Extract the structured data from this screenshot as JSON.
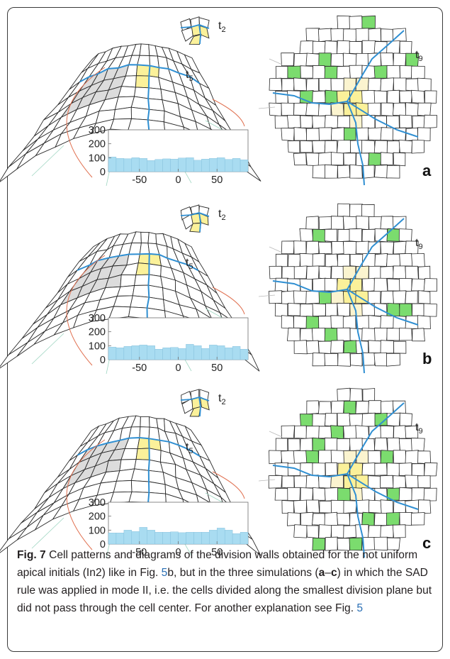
{
  "panels": [
    {
      "letter": "a",
      "labels": {
        "t2": "t",
        "t2_sub": "2",
        "t5": "t",
        "t5_sub": "5",
        "t9": "t",
        "t9_sub": "9"
      },
      "chart_data": {
        "type": "bar",
        "x_ticks": [
          "-50",
          "0",
          "50"
        ],
        "y_ticks": [
          "300",
          "200",
          "100",
          "0"
        ],
        "ylim": [
          0,
          300
        ],
        "xlim": [
          -90,
          90
        ],
        "bin_width": 10,
        "x": [
          -85,
          -75,
          -65,
          -55,
          -45,
          -35,
          -25,
          -15,
          -5,
          5,
          15,
          25,
          35,
          45,
          55,
          65,
          75,
          85
        ],
        "values": [
          105,
          95,
          93,
          100,
          95,
          80,
          88,
          92,
          90,
          98,
          100,
          82,
          90,
          95,
          100,
          88,
          95,
          85
        ],
        "color": "#a9dcf1"
      }
    },
    {
      "letter": "b",
      "labels": {
        "t2": "t",
        "t2_sub": "2",
        "t5": "t",
        "t5_sub": "5",
        "t9": "t",
        "t9_sub": "9"
      },
      "chart_data": {
        "type": "bar",
        "x_ticks": [
          "-50",
          "0",
          "50"
        ],
        "y_ticks": [
          "300",
          "200",
          "100",
          "0"
        ],
        "ylim": [
          0,
          300
        ],
        "xlim": [
          -90,
          90
        ],
        "bin_width": 10,
        "x": [
          -85,
          -75,
          -65,
          -55,
          -45,
          -35,
          -25,
          -15,
          -5,
          5,
          15,
          25,
          35,
          45,
          55,
          65,
          75,
          85
        ],
        "values": [
          90,
          85,
          95,
          100,
          105,
          100,
          75,
          85,
          88,
          80,
          110,
          100,
          80,
          105,
          100,
          85,
          95,
          75
        ],
        "color": "#a9dcf1"
      }
    },
    {
      "letter": "c",
      "labels": {
        "t2": "t",
        "t2_sub": "2",
        "t5": "t",
        "t5_sub": "5",
        "t9": "t",
        "t9_sub": "9"
      },
      "chart_data": {
        "type": "bar",
        "x_ticks": [
          "-50",
          "0",
          "50"
        ],
        "y_ticks": [
          "300",
          "200",
          "100",
          "0"
        ],
        "ylim": [
          0,
          300
        ],
        "xlim": [
          -90,
          90
        ],
        "bin_width": 10,
        "x": [
          -85,
          -75,
          -65,
          -55,
          -45,
          -35,
          -25,
          -15,
          -5,
          5,
          15,
          25,
          35,
          45,
          55,
          65,
          75,
          85
        ],
        "values": [
          80,
          80,
          100,
          90,
          120,
          100,
          85,
          85,
          88,
          82,
          85,
          85,
          85,
          100,
          115,
          100,
          75,
          85
        ],
        "color": "#a9dcf1"
      }
    }
  ],
  "caption": {
    "fig_label": "Fig. 7",
    "part1": " Cell patterns and diagrams of the division walls obtained for the not uniform apical initials (In2) like in Fig. ",
    "ref1": "5",
    "part2": "b, but in the three simulations (",
    "range_start": "a",
    "range_dash": "–",
    "range_end": "c",
    "part3": ") in which the SAD rule was applied in mode II, i.e. the cells divided along the smallest division plane but did not pass through the cell center. For another explanation see Fig. ",
    "ref2": "5"
  },
  "colors": {
    "wall": "#2a2a2a",
    "blue_wall": "#2f8fd2",
    "green_cell": "#7bdc6e",
    "yellow_cell": "#fbf19a",
    "pale_yellow": "#fbf4cf",
    "gray_region": "#dcdcdc",
    "orange_arc": "#e07050",
    "ref_blue": "#2a6fb5"
  }
}
